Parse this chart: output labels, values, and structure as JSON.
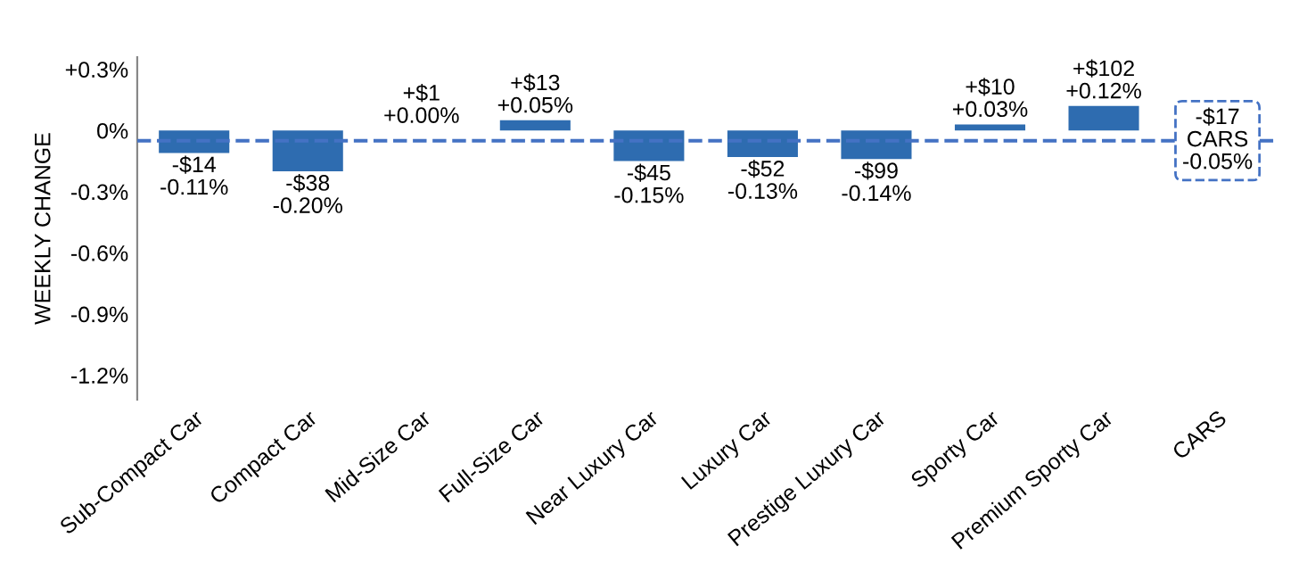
{
  "chart_data": {
    "type": "bar",
    "ylabel": "WEEKLY CHANGE",
    "categories": [
      "Sub-Compact Car",
      "Compact Car",
      "Mid-Size Car",
      "Full-Size Car",
      "Near Luxury Car",
      "Luxury Car",
      "Prestige Luxury Car",
      "Sporty Car",
      "Premium Sporty Car",
      "CARS"
    ],
    "values": [
      -0.11,
      -0.2,
      0.0,
      0.05,
      -0.15,
      -0.13,
      -0.14,
      0.03,
      0.12,
      null
    ],
    "value_labels": [
      "-$14\n-0.11%",
      "-$38\n-0.20%",
      "+$1\n+0.00%",
      "+$13\n+0.05%",
      "-$45\n-0.15%",
      "-$52\n-0.13%",
      "-$99\n-0.14%",
      "+$10\n+0.03%",
      "+$102\n+0.12%",
      null
    ],
    "color": "#2e6cb0",
    "ylim": [
      -1.32,
      0.36
    ],
    "yticks": [
      {
        "value": 0.3,
        "label": "+0.3%"
      },
      {
        "value": 0,
        "label": "0%"
      },
      {
        "value": -0.3,
        "label": "-0.3%"
      },
      {
        "value": -0.6,
        "label": "-0.6%"
      },
      {
        "value": -0.9,
        "label": "-0.9%"
      },
      {
        "value": -1.2,
        "label": "-1.2%"
      }
    ],
    "ref_lines": [
      {
        "axis": "y",
        "value": -0.05,
        "label": "-$17\nCARS\n-0.05%",
        "color": "#4472c4",
        "line_style": "dashed"
      }
    ],
    "grid": false,
    "legend": false
  }
}
